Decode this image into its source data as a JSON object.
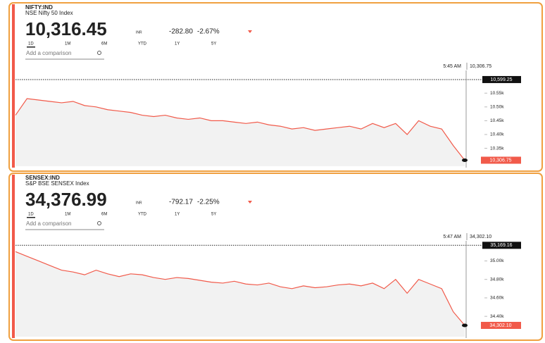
{
  "chart_data": [
    {
      "type": "line",
      "title": "NIFTY:IND",
      "subtitle": "NSE Nifty 50 Index",
      "price": "10,316.45",
      "currency": "INR",
      "change": "-282.80",
      "change_pct": "-2.67%",
      "ranges": [
        "1D",
        "1M",
        "6M",
        "YTD",
        "1Y",
        "5Y"
      ],
      "comparison": "Add a comparison",
      "crosshair": {
        "time": "5:45 AM",
        "value": "10,306.75"
      },
      "previous_close": {
        "value": 10599.25,
        "label": "10,599.25"
      },
      "last": {
        "value": 10306.75,
        "label": "10,306.75"
      },
      "color": "#f15a4a",
      "ylim": [
        10285,
        10640
      ],
      "yticks": [
        {
          "value": 10550,
          "label": "10.55k"
        },
        {
          "value": 10500,
          "label": "10.50k"
        },
        {
          "value": 10450,
          "label": "10.45k"
        },
        {
          "value": 10400,
          "label": "10.40k"
        },
        {
          "value": 10350,
          "label": "10.35k"
        }
      ],
      "values": [
        10470,
        10530,
        10525,
        10520,
        10515,
        10520,
        10505,
        10500,
        10490,
        10485,
        10480,
        10470,
        10465,
        10470,
        10460,
        10455,
        10460,
        10450,
        10450,
        10445,
        10440,
        10445,
        10435,
        10430,
        10420,
        10425,
        10415,
        10420,
        10425,
        10430,
        10420,
        10440,
        10425,
        10440,
        10400,
        10450,
        10430,
        10420,
        10360,
        10306.75
      ]
    },
    {
      "type": "line",
      "title": "SENSEX:IND",
      "subtitle": "S&P BSE SENSEX Index",
      "price": "34,376.99",
      "currency": "INR",
      "change": "-792.17",
      "change_pct": "-2.25%",
      "ranges": [
        "1D",
        "1M",
        "6M",
        "YTD",
        "1Y",
        "5Y"
      ],
      "comparison": "Add a comparison",
      "crosshair": {
        "time": "5:47 AM",
        "value": "34,302.10"
      },
      "previous_close": {
        "value": 35169.16,
        "label": "35,169.16"
      },
      "last": {
        "value": 34302.1,
        "label": "34,302.10"
      },
      "color": "#f15a4a",
      "ylim": [
        34180,
        35240
      ],
      "yticks": [
        {
          "value": 35000,
          "label": "35.00k"
        },
        {
          "value": 34800,
          "label": "34.80k"
        },
        {
          "value": 34600,
          "label": "34.60k"
        },
        {
          "value": 34400,
          "label": "34.40k"
        }
      ],
      "values": [
        35100,
        35050,
        35000,
        34950,
        34900,
        34880,
        34850,
        34900,
        34860,
        34830,
        34860,
        34850,
        34820,
        34800,
        34820,
        34810,
        34790,
        34770,
        34760,
        34780,
        34750,
        34740,
        34760,
        34720,
        34700,
        34730,
        34710,
        34720,
        34740,
        34750,
        34730,
        34760,
        34700,
        34800,
        34650,
        34800,
        34750,
        34700,
        34450,
        34302.1
      ]
    }
  ]
}
